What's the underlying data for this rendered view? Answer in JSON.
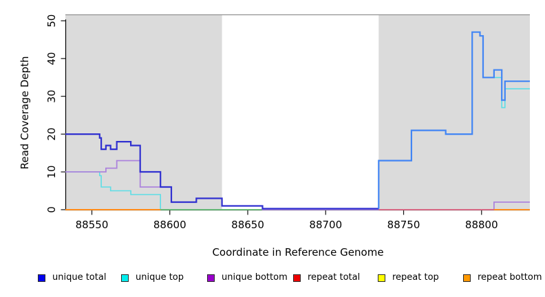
{
  "chart_data": {
    "type": "line",
    "subtype": "step-coverage-plot",
    "title": "",
    "xlabel": "Coordinate in Reference Genome",
    "ylabel": "Read Coverage Depth",
    "xlim": [
      88533,
      88831
    ],
    "ylim": [
      0,
      51.5
    ],
    "x_ticks": [
      88550,
      88600,
      88650,
      88700,
      88750,
      88800
    ],
    "y_ticks": [
      0,
      10,
      20,
      30,
      40,
      50
    ],
    "grid": false,
    "legend_position": "bottom",
    "panel_color": "#DBDBDB",
    "panel_top_border_color": "#919191",
    "shaded_regions": [
      {
        "x0": 88533,
        "x1": 88633.5
      },
      {
        "x0": 88734,
        "x1": 88831
      }
    ],
    "series": [
      {
        "name": "unique total",
        "legend_color": "#0000EE",
        "stroke": [
          "#3030D0",
          "#4285F4"
        ],
        "split_x": 88734,
        "width": 2.2,
        "zero_lift": 1.5,
        "z": 6,
        "segments": [
          [
            [
              88533,
              20
            ],
            [
              88555,
              19
            ],
            [
              88556,
              16
            ],
            [
              88559,
              17
            ],
            [
              88562,
              16
            ],
            [
              88566,
              18
            ],
            [
              88575,
              17
            ],
            [
              88581,
              10
            ],
            [
              88594,
              6
            ],
            [
              88601,
              2
            ],
            [
              88617,
              3
            ],
            [
              88633.5,
              1
            ],
            [
              88659.5,
              0
            ],
            [
              88734,
              13
            ],
            [
              88755,
              21
            ],
            [
              88777,
              20
            ],
            [
              88794,
              47
            ],
            [
              88799,
              46
            ],
            [
              88801,
              35
            ],
            [
              88808,
              37
            ],
            [
              88813,
              29
            ],
            [
              88815,
              34
            ],
            [
              88831,
              34
            ]
          ]
        ]
      },
      {
        "name": "unique top",
        "legend_color": "#00EEEE",
        "stroke": [
          "#5CDEE6"
        ],
        "width": 1.6,
        "zero_lift": 0,
        "z": 1,
        "segments": [
          [
            [
              88533,
              10
            ],
            [
              88555,
              9
            ],
            [
              88556,
              6
            ],
            [
              88562,
              5
            ],
            [
              88575,
              4
            ],
            [
              88594,
              0
            ],
            [
              88734,
              13
            ],
            [
              88755,
              21
            ],
            [
              88777,
              20
            ],
            [
              88794,
              47
            ],
            [
              88799,
              46
            ],
            [
              88801,
              35
            ],
            [
              88813,
              27
            ],
            [
              88815,
              32
            ],
            [
              88831,
              32
            ]
          ]
        ]
      },
      {
        "name": "unique bottom",
        "legend_color": "#9900CC",
        "stroke": [
          "#AC83DC"
        ],
        "width": 1.8,
        "zero_lift": 0,
        "z": 3,
        "segments": [
          [
            [
              88533,
              10
            ],
            [
              88559,
              11
            ],
            [
              88566,
              13
            ],
            [
              88581,
              6
            ],
            [
              88601,
              2
            ],
            [
              88617,
              3
            ],
            [
              88633.5,
              1
            ],
            [
              88659.5,
              0
            ],
            [
              88808,
              2
            ],
            [
              88831,
              2
            ]
          ]
        ]
      },
      {
        "name": "repeat total",
        "legend_color": "#EE0000",
        "stroke": [
          "#E8606E"
        ],
        "width": 1.6,
        "zero_lift": 0,
        "z": 4,
        "segments": [
          [
            [
              88734,
              0
            ],
            [
              88831,
              0
            ]
          ]
        ]
      },
      {
        "name": "repeat top",
        "legend_color": "#FFFF00",
        "stroke": [
          "#63B863"
        ],
        "width": 1.6,
        "zero_lift": 0,
        "z": 2,
        "segments": [
          [
            [
              88594,
              0
            ],
            [
              88672,
              0
            ]
          ]
        ]
      },
      {
        "name": "repeat bottom",
        "legend_color": "#FF9900",
        "stroke": [
          "#FF8C1A"
        ],
        "width": 2,
        "zero_lift": 0,
        "z": 5,
        "segments": [
          [
            [
              88533,
              0
            ],
            [
              88594,
              0
            ]
          ],
          [
            [
              88808,
              0
            ],
            [
              88831,
              0
            ]
          ]
        ]
      }
    ]
  }
}
